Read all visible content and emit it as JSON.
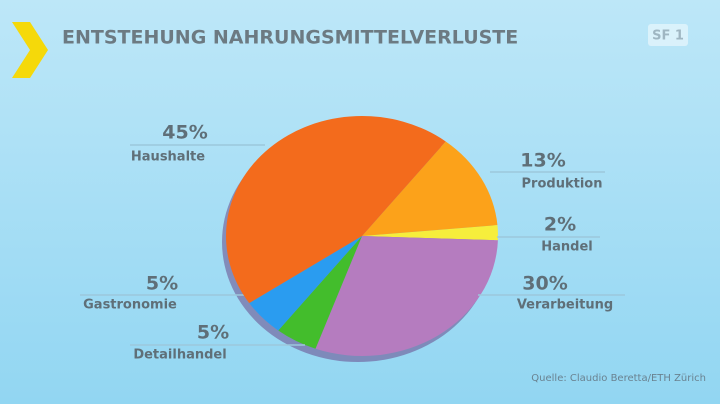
{
  "chart_data": {
    "type": "pie",
    "title": "ENTSTEHUNG NAHRUNGSMITTELVERLUSTE",
    "categories": [
      "Produktion",
      "Handel",
      "Verarbeitung",
      "Detailhandel",
      "Gastronomie",
      "Haushalte"
    ],
    "values": [
      13,
      2,
      30,
      5,
      5,
      45
    ],
    "value_labels": [
      "13%",
      "2%",
      "30%",
      "5%",
      "5%",
      "45%"
    ],
    "colors": [
      "#fca21a",
      "#f6ee3c",
      "#b57cbf",
      "#43bd2c",
      "#2a9cf0",
      "#f36b1c"
    ],
    "source": "Quelle: Claudio Beretta/ETH Zürich",
    "logo": "SF 1"
  }
}
